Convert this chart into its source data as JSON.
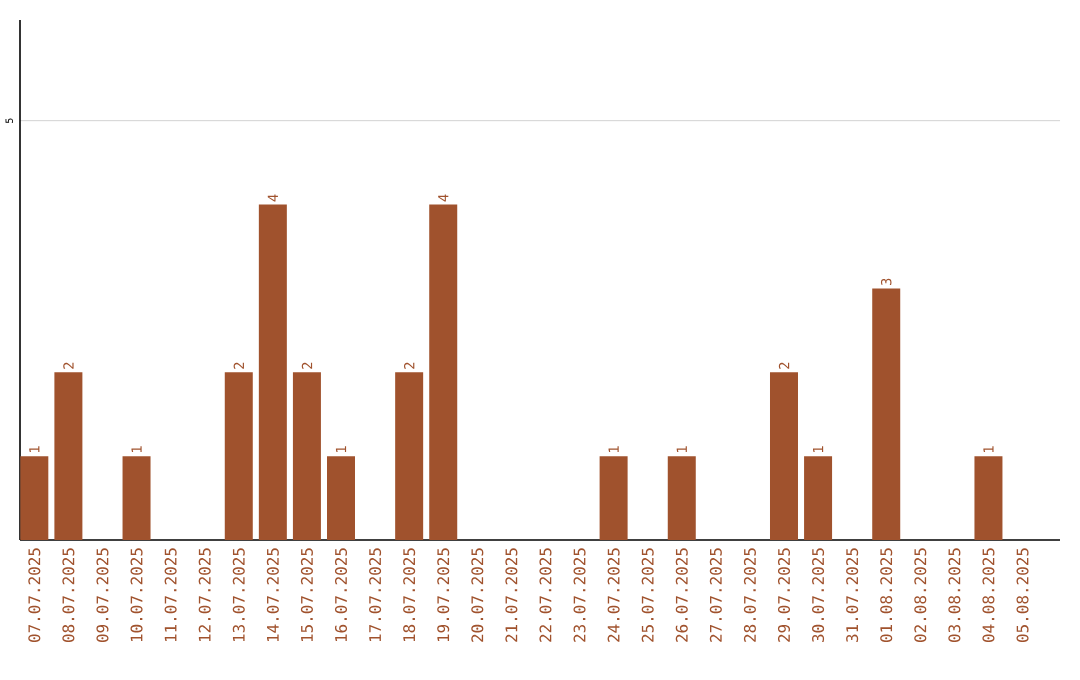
{
  "chart_data": {
    "type": "bar",
    "categories": [
      "07.07.2025",
      "08.07.2025",
      "09.07.2025",
      "10.07.2025",
      "11.07.2025",
      "12.07.2025",
      "13.07.2025",
      "14.07.2025",
      "15.07.2025",
      "16.07.2025",
      "17.07.2025",
      "18.07.2025",
      "19.07.2025",
      "20.07.2025",
      "21.07.2025",
      "22.07.2025",
      "23.07.2025",
      "24.07.2025",
      "25.07.2025",
      "26.07.2025",
      "27.07.2025",
      "28.07.2025",
      "29.07.2025",
      "30.07.2025",
      "31.07.2025",
      "01.08.2025",
      "02.08.2025",
      "03.08.2025",
      "04.08.2025",
      "05.08.2025"
    ],
    "values": [
      1,
      2,
      0,
      1,
      0,
      0,
      2,
      4,
      2,
      1,
      0,
      2,
      4,
      0,
      0,
      0,
      0,
      1,
      0,
      1,
      0,
      0,
      2,
      1,
      0,
      3,
      0,
      0,
      1,
      0
    ],
    "value_labels": [
      "1",
      "2",
      null,
      "1",
      null,
      null,
      "2",
      "4",
      "2",
      "1",
      null,
      "2",
      "4",
      null,
      null,
      null,
      null,
      "1",
      null,
      "1",
      null,
      null,
      "2",
      "1",
      null,
      "3",
      null,
      null,
      "1",
      null
    ],
    "color": "#a0522d",
    "ylim": [
      0,
      6.2
    ],
    "yticks": [
      5
    ],
    "grid": "y"
  }
}
